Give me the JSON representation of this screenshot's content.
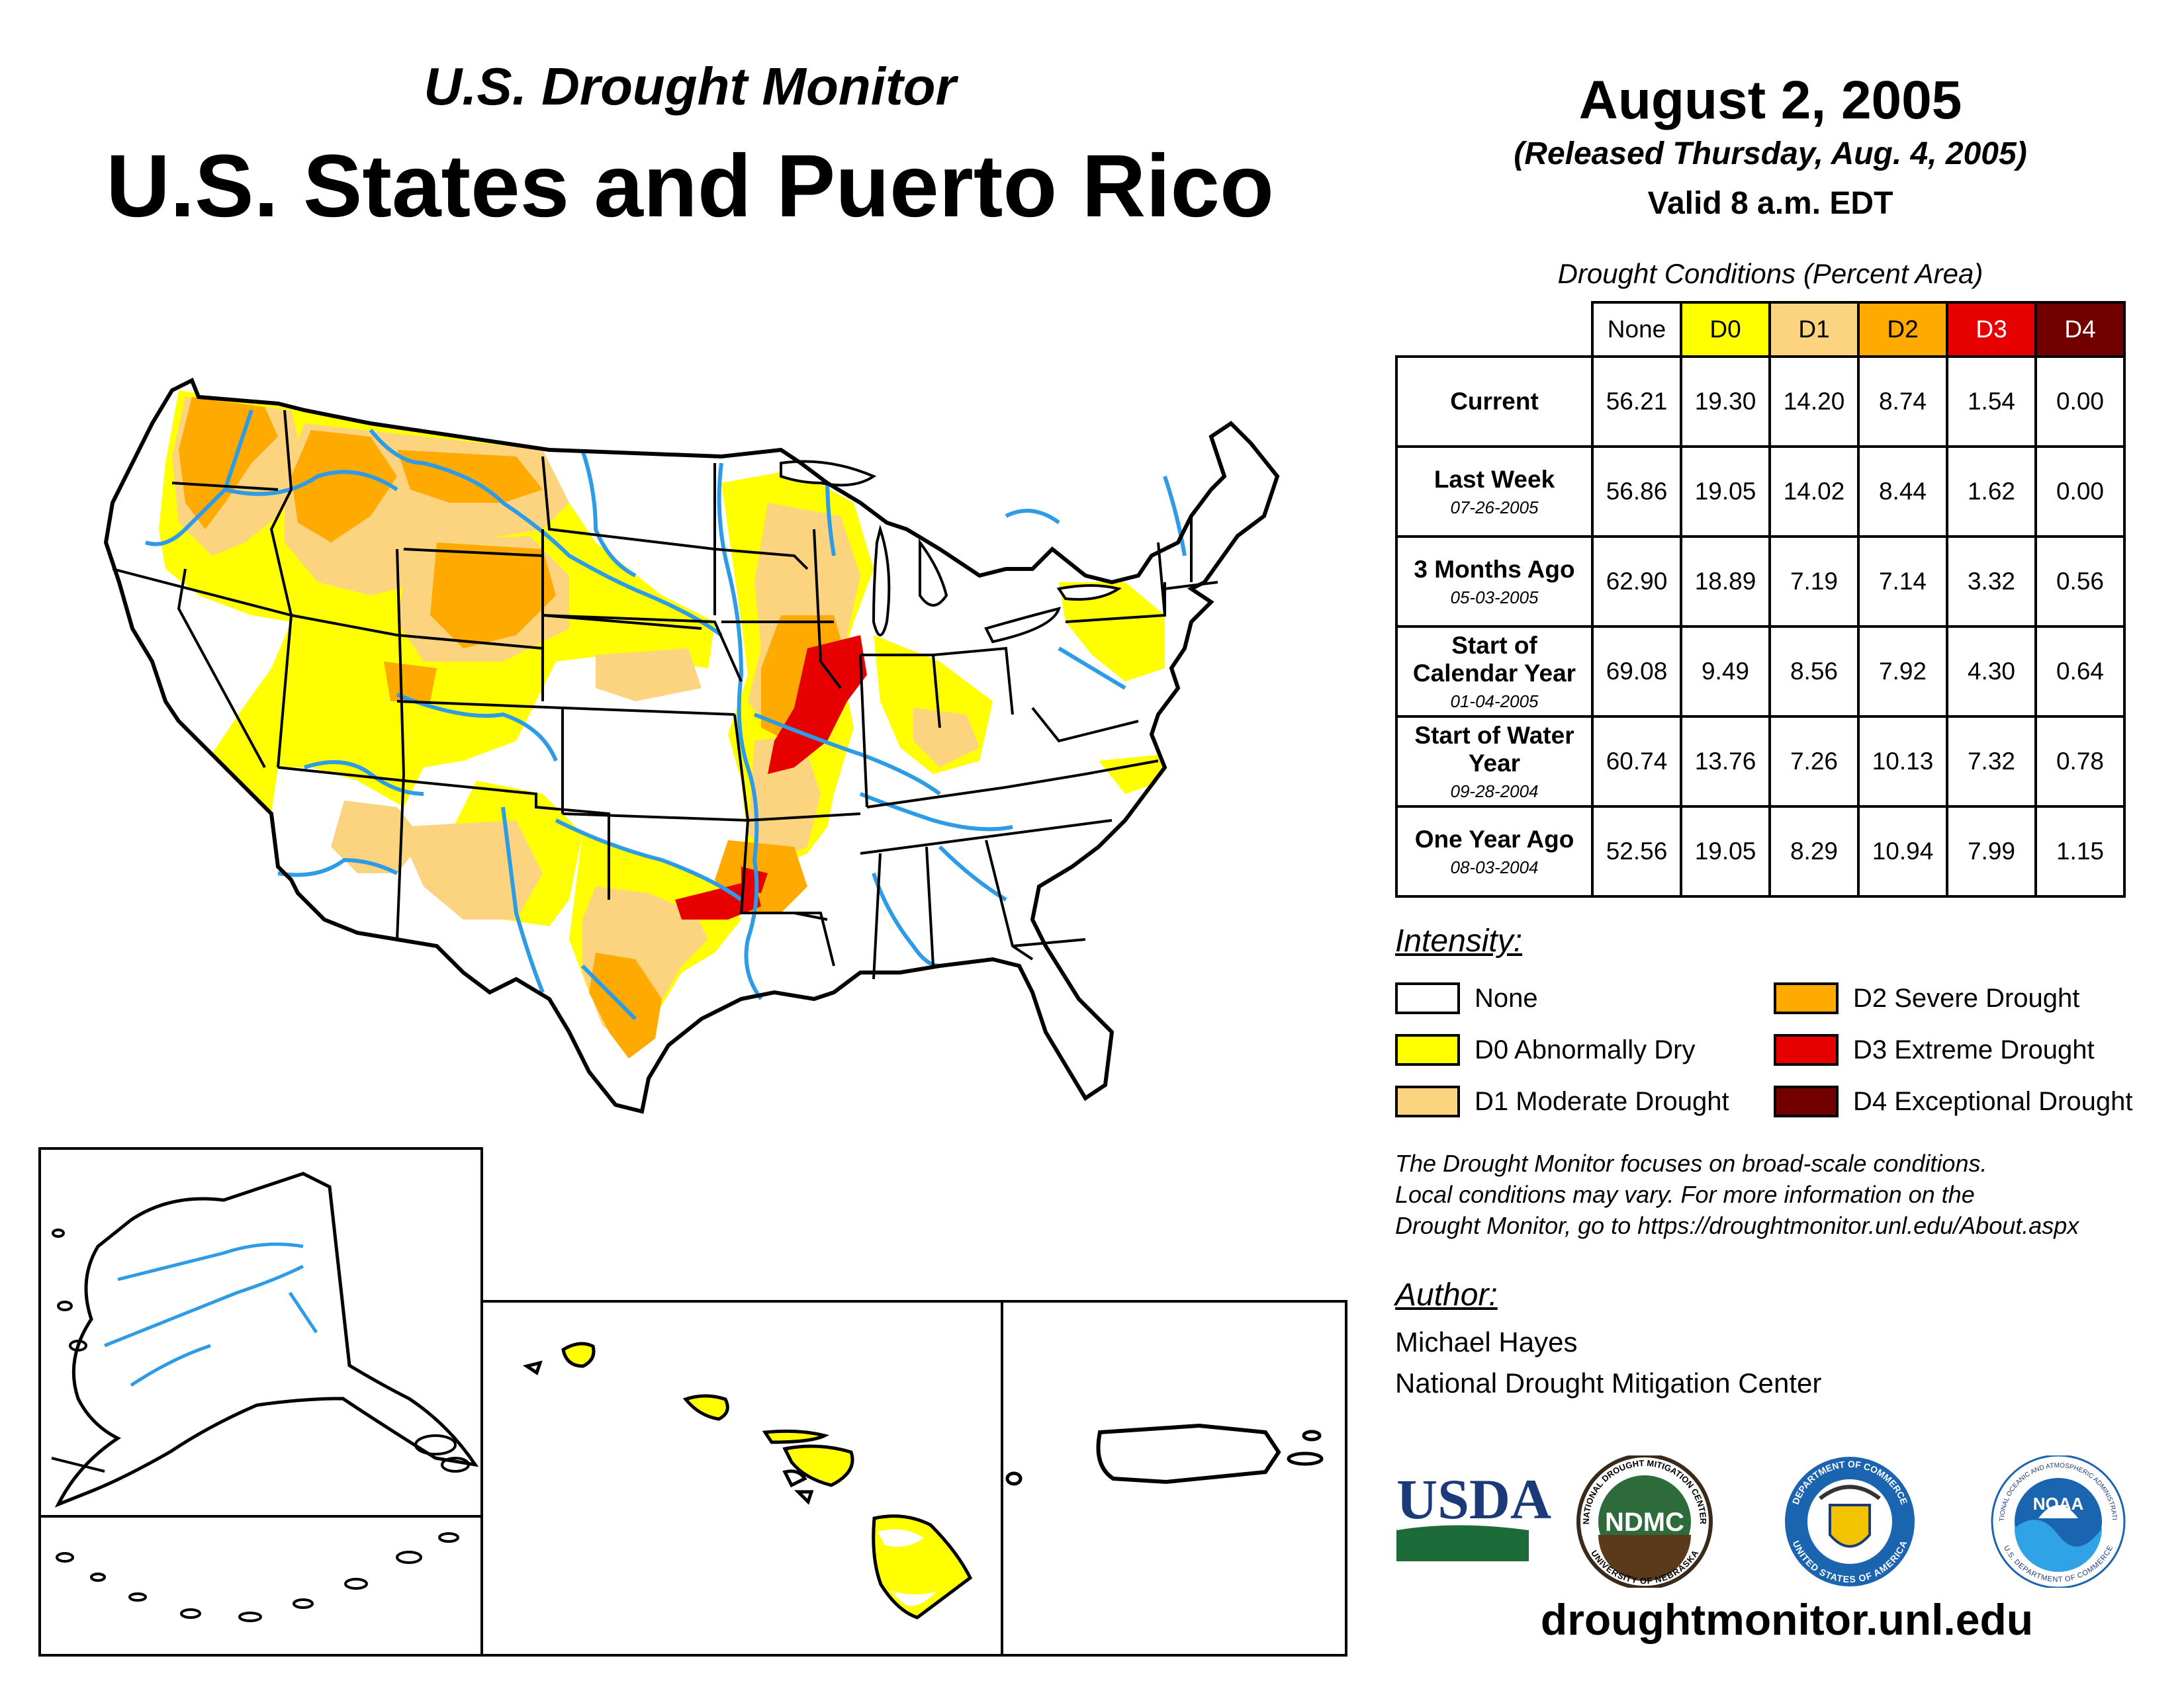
{
  "header": {
    "subtitle": "U.S. Drought Monitor",
    "title": "U.S. States and Puerto Rico",
    "date": "August 2, 2005",
    "released": "(Released Thursday, Aug. 4, 2005)",
    "valid": "Valid 8 a.m. EDT"
  },
  "table": {
    "caption": "Drought Conditions (Percent Area)",
    "columns": [
      "None",
      "D0",
      "D1",
      "D2",
      "D3",
      "D4"
    ],
    "column_colors": [
      "#ffffff",
      "#ffff00",
      "#fcd37f",
      "#ffaa00",
      "#e60000",
      "#730000"
    ],
    "rows": [
      {
        "label": "Current",
        "date": "",
        "values": [
          "56.21",
          "19.30",
          "14.20",
          "8.74",
          "1.54",
          "0.00"
        ]
      },
      {
        "label": "Last Week",
        "date": "07-26-2005",
        "values": [
          "56.86",
          "19.05",
          "14.02",
          "8.44",
          "1.62",
          "0.00"
        ]
      },
      {
        "label": "3 Months Ago",
        "date": "05-03-2005",
        "values": [
          "62.90",
          "18.89",
          "7.19",
          "7.14",
          "3.32",
          "0.56"
        ]
      },
      {
        "label": "Start of Calendar Year",
        "date": "01-04-2005",
        "values": [
          "69.08",
          "9.49",
          "8.56",
          "7.92",
          "4.30",
          "0.64"
        ]
      },
      {
        "label": "Start of Water Year",
        "date": "09-28-2004",
        "values": [
          "60.74",
          "13.76",
          "7.26",
          "10.13",
          "7.32",
          "0.78"
        ]
      },
      {
        "label": "One Year Ago",
        "date": "08-03-2004",
        "values": [
          "52.56",
          "19.05",
          "8.29",
          "10.94",
          "7.99",
          "1.15"
        ]
      }
    ]
  },
  "legend": {
    "title": "Intensity:",
    "items": [
      {
        "label": "None",
        "color": "#ffffff"
      },
      {
        "label": "D0 Abnormally Dry",
        "color": "#ffff00"
      },
      {
        "label": "D1 Moderate Drought",
        "color": "#fcd37f"
      },
      {
        "label": "D2 Severe Drought",
        "color": "#ffaa00"
      },
      {
        "label": "D3 Extreme Drought",
        "color": "#e60000"
      },
      {
        "label": "D4 Exceptional Drought",
        "color": "#730000"
      }
    ]
  },
  "note": {
    "line1": "The Drought Monitor focuses on broad-scale conditions.",
    "line2": "Local conditions may vary. For more information on the",
    "line3": "Drought Monitor, go to https://droughtmonitor.unl.edu/About.aspx"
  },
  "author": {
    "heading": "Author:",
    "name": "Michael Hayes",
    "org": "National Drought Mitigation Center"
  },
  "logos": {
    "usda": "USDA",
    "ndmc": "NDMC",
    "ndmc_ring_top": "NATIONAL DROUGHT MITIGATION CENTER",
    "ndmc_ring_bottom": "UNIVERSITY OF NEBRASKA",
    "doc_ring_top": "DEPARTMENT OF COMMERCE",
    "doc_ring_bottom": "UNITED STATES OF AMERICA",
    "noaa": "NOAA",
    "noaa_ring_top": "NATIONAL OCEANIC AND ATMOSPHERIC ADMINISTRATION",
    "noaa_ring_bottom": "U.S. DEPARTMENT OF COMMERCE"
  },
  "footer": {
    "url": "droughtmonitor.unl.edu"
  },
  "map": {
    "water_color": "#2e9be6",
    "border_color": "#000000",
    "regions": [
      "CONUS",
      "Alaska",
      "Hawaii",
      "Puerto Rico"
    ]
  }
}
